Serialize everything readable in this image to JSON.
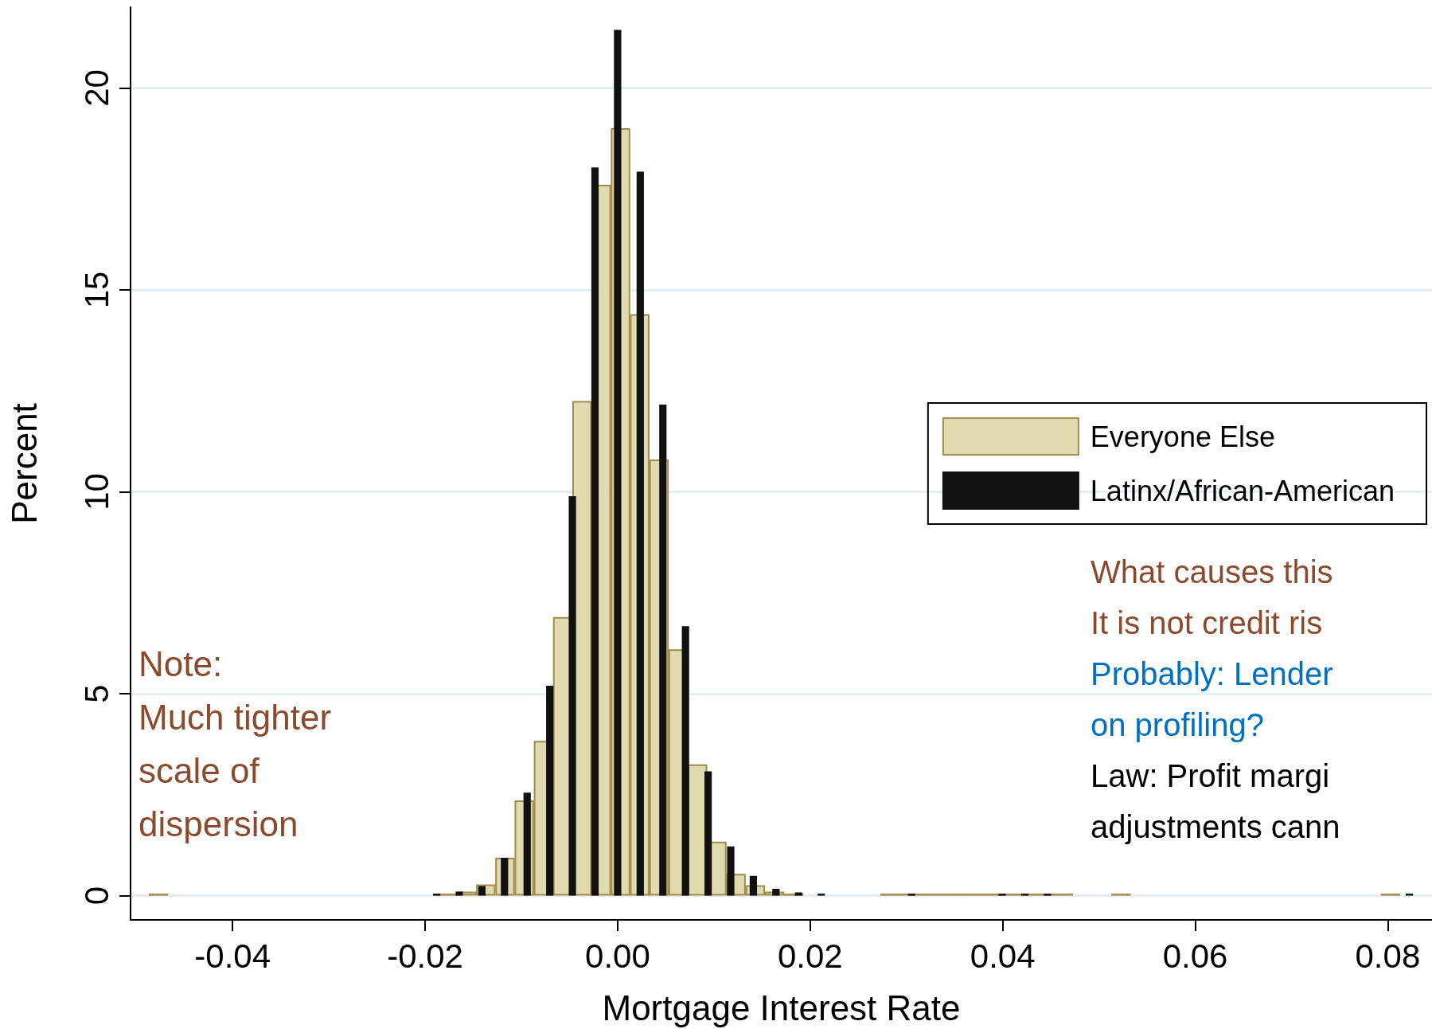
{
  "chart_data": {
    "type": "bar",
    "xlabel": "Mortgage Interest Rate",
    "ylabel": "Percent",
    "xlim": [
      -0.0506,
      0.0846
    ],
    "xticks": [
      -0.04,
      -0.02,
      {
        "value": 0,
        "label": "0.00"
      },
      0.02,
      0.04,
      0.06,
      0.08
    ],
    "ylim": [
      -0.6,
      22
    ],
    "yticks": [
      0,
      5,
      10,
      15,
      20
    ],
    "grid": "y",
    "legend": "right",
    "series": [
      {
        "name": "Everyone Else",
        "color": "#e0dab0",
        "x": [
          -0.0477,
          -0.0177,
          -0.0157,
          -0.0137,
          -0.0117,
          -0.0097,
          -0.0077,
          -0.0057,
          -0.0037,
          -0.0017,
          0.0003,
          0.0023,
          0.0043,
          0.0063,
          0.0083,
          0.0103,
          0.0123,
          0.0143,
          0.0163,
          0.0183,
          0.0283,
          0.0303,
          0.0323,
          0.0343,
          0.0363,
          0.0383,
          0.0403,
          0.0423,
          0.0443,
          0.0463,
          0.0523,
          0.0803
        ],
        "values": [
          0.05,
          0.05,
          0.1,
          0.28,
          0.94,
          2.36,
          3.83,
          6.9,
          12.25,
          17.6,
          19.0,
          14.4,
          10.8,
          6.1,
          3.25,
          1.34,
          0.54,
          0.26,
          0.1,
          0.05,
          0.05,
          0.05,
          0.05,
          0.05,
          0.05,
          0.05,
          0.05,
          0.05,
          0.05,
          0.05,
          0.05,
          0.05
        ]
      },
      {
        "name": "Latinx/African-American",
        "color": "#111111",
        "x": [
          -0.0188,
          -0.01645,
          -0.0141,
          -0.01175,
          -0.0094,
          -0.00705,
          -0.0047,
          -0.00235,
          0,
          0.00235,
          0.0047,
          0.00705,
          0.0094,
          0.01175,
          0.0141,
          0.01645,
          0.0188,
          0.02115,
          0.03055,
          0.03995,
          0.0423,
          0.04465,
          0.08225
        ],
        "values": [
          0.05,
          0.1,
          0.24,
          0.94,
          2.55,
          5.2,
          9.89,
          18.03,
          21.44,
          17.93,
          12.16,
          6.67,
          3.08,
          1.22,
          0.49,
          0.17,
          0.08,
          0.05,
          0.05,
          0.05,
          0.05,
          0.05,
          0.05
        ]
      }
    ],
    "annotations": [
      "Note:\nMuch tighter\nscale of\ndispersion",
      "What causes this\nIt is not credit ris",
      "Probably: Lender\non profiling?",
      "Law: Profit margi\nadjustments cann"
    ]
  }
}
